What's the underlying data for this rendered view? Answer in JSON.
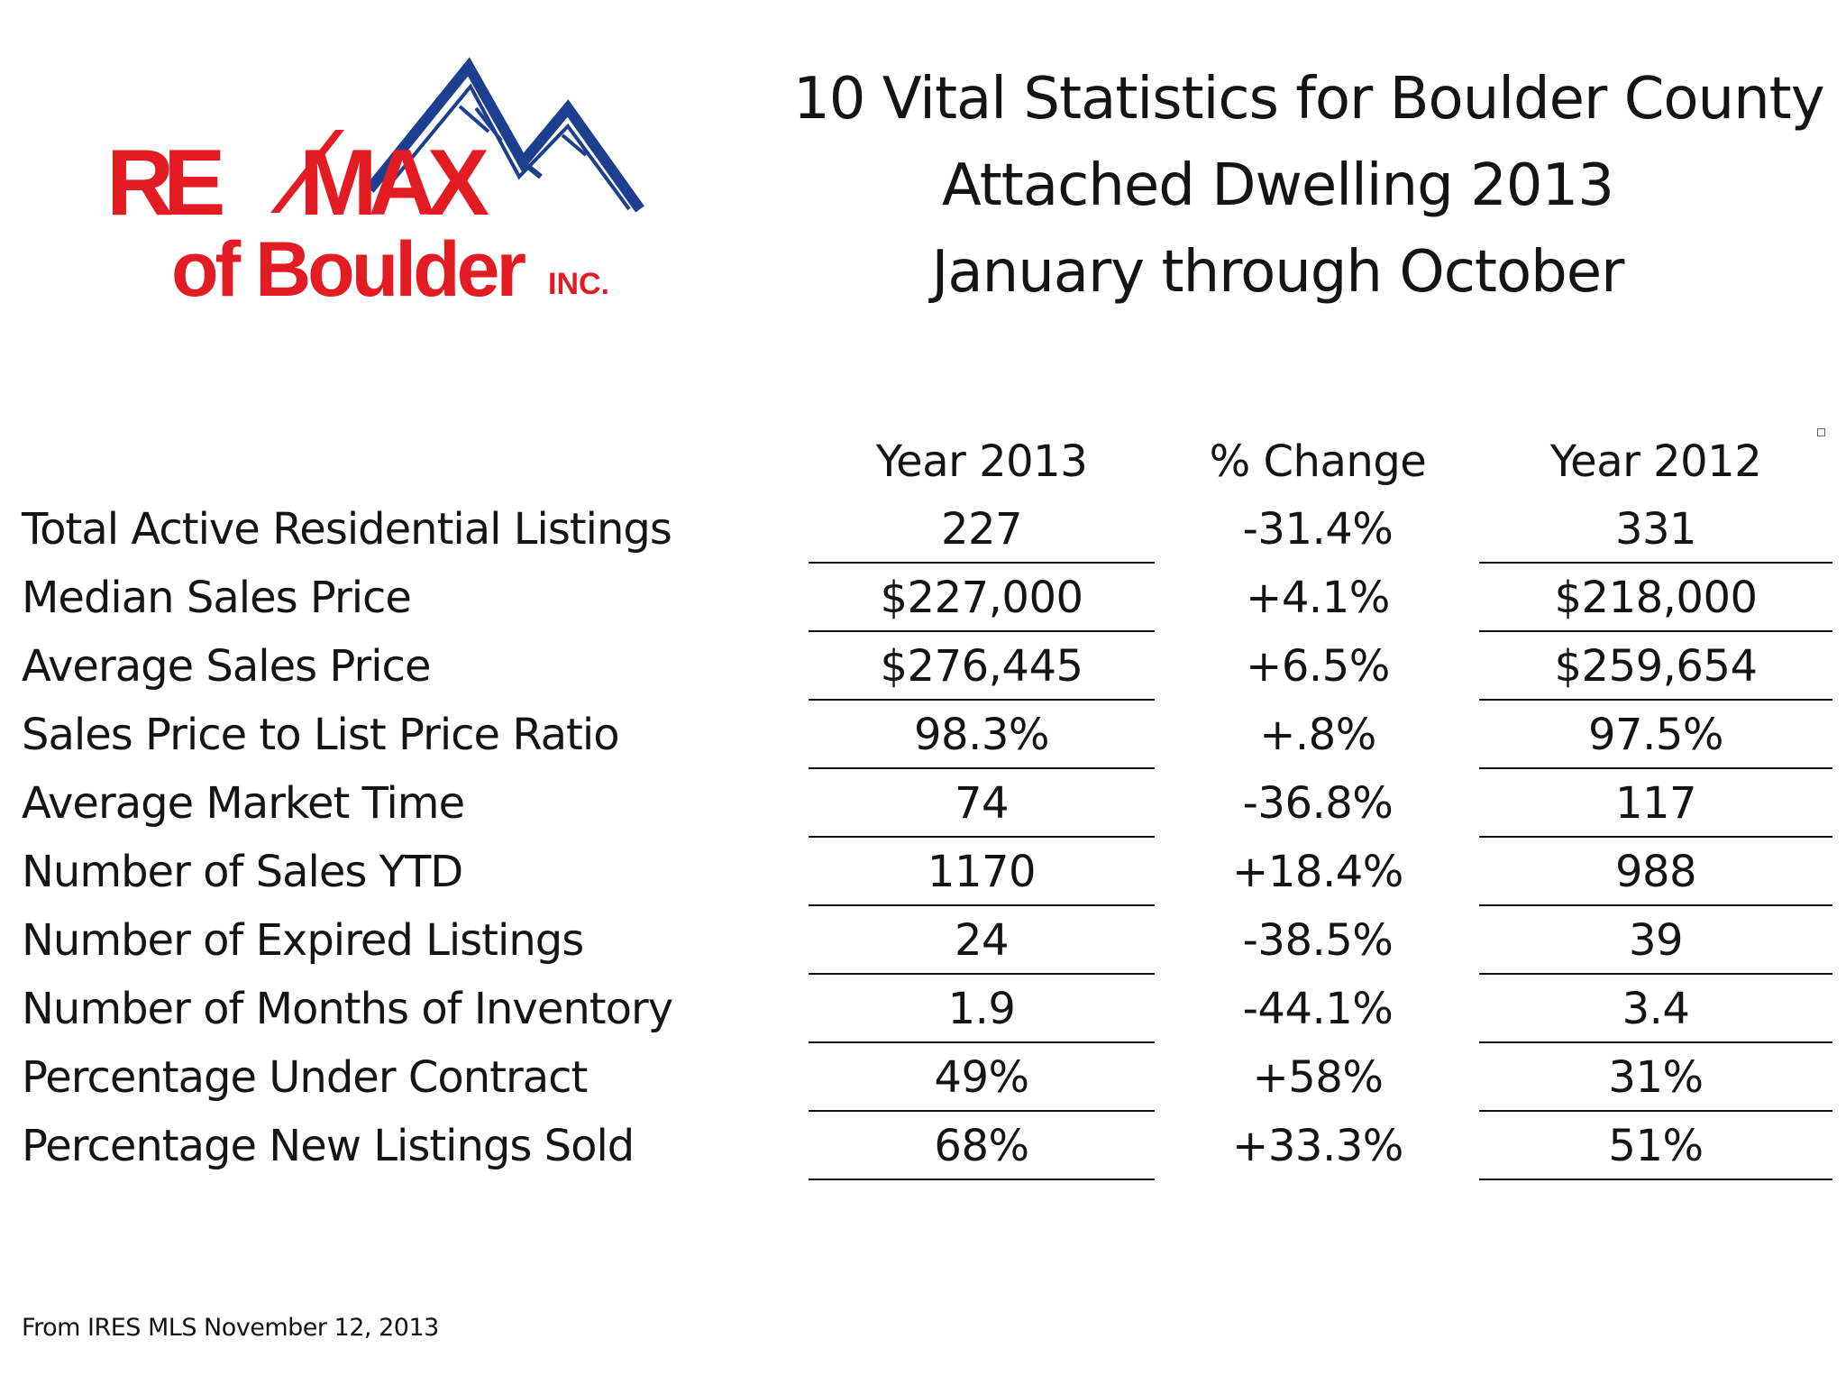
{
  "logo": {
    "brand_text": "RE/MAX",
    "sub_text": "of Boulder",
    "suffix_text": "INC.",
    "colors": {
      "red": "#e31b23",
      "blue": "#1d3f8f"
    }
  },
  "title": {
    "line1": "10 Vital Statistics for Boulder County",
    "line2": "Attached Dwelling 2013",
    "line3": "January through October"
  },
  "table": {
    "headers": {
      "year_2013": "Year 2013",
      "change": "% Change",
      "year_2012": "Year 2012"
    },
    "rows": [
      {
        "label": "Total Active Residential  Listings",
        "year_2013": "227",
        "change": "-31.4%",
        "year_2012": "331"
      },
      {
        "label": "Median Sales Price",
        "year_2013": "$227,000",
        "change": "+4.1%",
        "year_2012": "$218,000"
      },
      {
        "label": "Average Sales Price",
        "year_2013": "$276,445",
        "change": "+6.5%",
        "year_2012": "$259,654"
      },
      {
        "label": "Sales Price to List Price Ratio",
        "year_2013": "98.3%",
        "change": "+.8%",
        "year_2012": "97.5%"
      },
      {
        "label": "Average Market Time",
        "year_2013": "74",
        "change": "-36.8%",
        "year_2012": "117"
      },
      {
        "label": "Number of Sales YTD",
        "year_2013": "1170",
        "change": "+18.4%",
        "year_2012": "988"
      },
      {
        "label": "Number of Expired Listings",
        "year_2013": "24",
        "change": "-38.5%",
        "year_2012": "39"
      },
      {
        "label": "Number of Months of Inventory",
        "year_2013": "1.9",
        "change": "-44.1%",
        "year_2012": "3.4"
      },
      {
        "label": "Percentage Under Contract",
        "year_2013": "49%",
        "change": "+58%",
        "year_2012": "31%"
      },
      {
        "label": "Percentage New Listings Sold",
        "year_2013": "68%",
        "change": "+33.3%",
        "year_2012": "51%"
      }
    ]
  },
  "footer": {
    "source": "From IRES MLS November 12, 2013"
  }
}
